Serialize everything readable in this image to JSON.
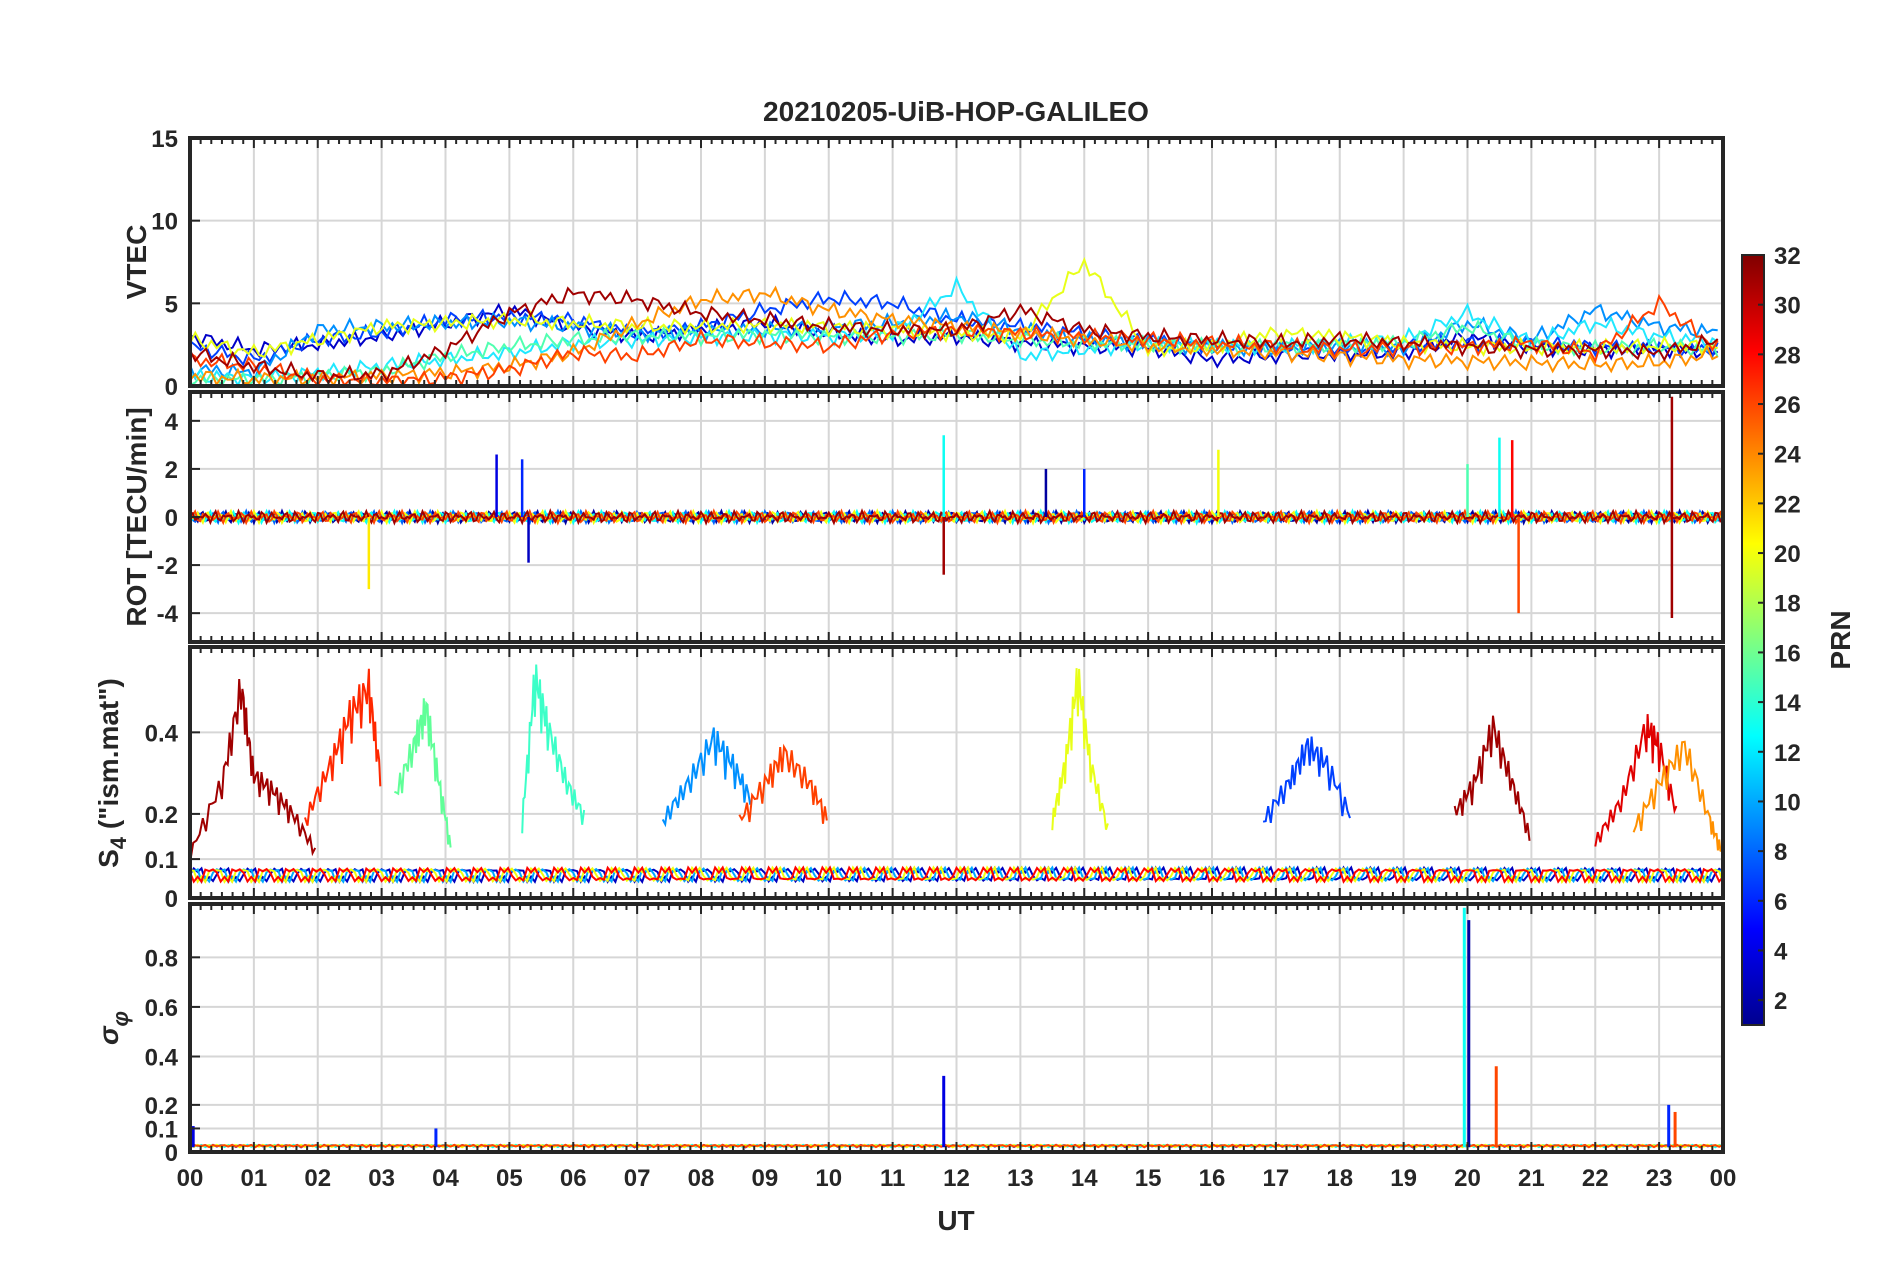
{
  "figure": {
    "title": "20210205-UiB-HOP-GALILEO",
    "xlabel": "UT",
    "x_tick_labels": [
      "00",
      "01",
      "02",
      "03",
      "04",
      "05",
      "06",
      "07",
      "08",
      "09",
      "10",
      "11",
      "12",
      "13",
      "14",
      "15",
      "16",
      "17",
      "18",
      "19",
      "20",
      "21",
      "22",
      "23",
      "00"
    ]
  },
  "colorbar": {
    "label": "PRN",
    "colormap": "jet",
    "range": [
      1,
      32
    ],
    "tick_labels": [
      "2",
      "4",
      "6",
      "8",
      "10",
      "12",
      "14",
      "16",
      "18",
      "20",
      "22",
      "24",
      "26",
      "28",
      "30",
      "32"
    ]
  },
  "chart_data": [
    {
      "type": "line",
      "panel": "vtec",
      "ylabel": "VTEC",
      "ylim": [
        0,
        15
      ],
      "yticks": [
        "0",
        "5",
        "10",
        "15"
      ],
      "xlim": [
        0,
        24
      ],
      "grid": true,
      "series": [
        {
          "prn": 2,
          "color": "#0000c8",
          "x": [
            0,
            1,
            2,
            3,
            4,
            5,
            6,
            7,
            8,
            9,
            10,
            11,
            12,
            13,
            14,
            15,
            16,
            17,
            18,
            19,
            20,
            21,
            22,
            23,
            24
          ],
          "y": [
            3.0,
            2.2,
            2.5,
            3.0,
            3.8,
            4.6,
            3.6,
            3.0,
            3.4,
            3.8,
            3.2,
            2.8,
            3.0,
            2.6,
            2.4,
            2.3,
            1.6,
            1.8,
            1.9,
            2.0,
            3.0,
            2.4,
            2.2,
            2.3,
            2.0
          ]
        },
        {
          "prn": 5,
          "color": "#0040ff",
          "x": [
            0,
            1,
            2,
            3,
            4,
            5,
            6,
            7,
            8,
            9,
            10,
            11,
            12,
            13,
            14,
            15,
            16,
            17,
            18,
            19,
            20,
            21,
            22,
            23,
            24
          ],
          "y": [
            2.4,
            1.6,
            2.8,
            3.2,
            4.0,
            4.2,
            4.0,
            3.2,
            3.6,
            4.6,
            5.3,
            5.0,
            4.0,
            3.6,
            3.2,
            2.8,
            2.5,
            2.4,
            2.2,
            2.4,
            2.6,
            2.6,
            2.4,
            2.3,
            2.2
          ]
        },
        {
          "prn": 8,
          "color": "#0090ff",
          "x": [
            0,
            1,
            2,
            3,
            4,
            5,
            6,
            7,
            8,
            9,
            10,
            11,
            12,
            13,
            14,
            15,
            16,
            17,
            18,
            19,
            20,
            21,
            22,
            23,
            24
          ],
          "y": [
            1.0,
            0.8,
            3.4,
            3.6,
            3.8,
            3.9,
            3.6,
            3.2,
            3.3,
            3.4,
            3.6,
            3.8,
            4.2,
            3.4,
            2.8,
            2.6,
            2.4,
            2.3,
            2.4,
            2.2,
            3.8,
            2.8,
            4.6,
            3.6,
            3.2
          ]
        },
        {
          "prn": 12,
          "color": "#20e8ff",
          "x": [
            0,
            1,
            2,
            3,
            4,
            5,
            6,
            7,
            8,
            9,
            10,
            11,
            12,
            13,
            14,
            15,
            16,
            17,
            18,
            19,
            20,
            21,
            22,
            23,
            24
          ],
          "y": [
            0.6,
            0.5,
            0.8,
            1.2,
            1.6,
            2.0,
            2.6,
            2.8,
            3.0,
            3.1,
            3.0,
            3.2,
            6.0,
            1.8,
            2.2,
            2.6,
            2.5,
            2.4,
            2.6,
            2.8,
            4.4,
            2.6,
            3.8,
            3.0,
            2.6
          ]
        },
        {
          "prn": 15,
          "color": "#50ffb0",
          "x": [
            0,
            1,
            2,
            3,
            4,
            5,
            6,
            7,
            8,
            9,
            10,
            11,
            12,
            13,
            14,
            15,
            16,
            17,
            18,
            19,
            20,
            21,
            22,
            23,
            24
          ],
          "y": [
            0.4,
            0.4,
            0.6,
            0.9,
            1.8,
            2.4,
            2.8,
            3.0,
            3.0,
            3.1,
            3.0,
            3.0,
            3.1,
            2.8,
            2.6,
            2.5,
            2.4,
            2.4,
            2.5,
            2.6,
            3.6,
            2.4,
            2.2,
            2.4,
            2.2
          ]
        },
        {
          "prn": 20,
          "color": "#e8ff18",
          "x": [
            0,
            1,
            2,
            3,
            4,
            5,
            6,
            7,
            8,
            9,
            10,
            11,
            12,
            13,
            14,
            15,
            16,
            17,
            18,
            19,
            20,
            21,
            22,
            23,
            24
          ],
          "y": [
            2.8,
            2.0,
            2.8,
            3.6,
            3.8,
            4.0,
            3.8,
            3.6,
            3.6,
            3.7,
            3.6,
            3.4,
            3.2,
            3.0,
            7.5,
            2.2,
            2.4,
            3.2,
            3.0,
            2.6,
            2.4,
            2.3,
            2.3,
            2.4,
            2.4
          ]
        },
        {
          "prn": 24,
          "color": "#ff9000",
          "x": [
            0,
            1,
            2,
            3,
            4,
            5,
            6,
            7,
            8,
            9,
            10,
            11,
            12,
            13,
            14,
            15,
            16,
            17,
            18,
            19,
            20,
            21,
            22,
            23,
            24
          ],
          "y": [
            0.6,
            0.4,
            0.5,
            0.6,
            0.8,
            1.2,
            2.0,
            3.8,
            5.2,
            5.6,
            4.6,
            4.0,
            3.6,
            3.2,
            2.8,
            2.4,
            2.2,
            2.0,
            1.8,
            1.6,
            1.5,
            1.4,
            1.3,
            1.4,
            2.0
          ]
        },
        {
          "prn": 26,
          "color": "#ff4000",
          "x": [
            0,
            1,
            2,
            3,
            4,
            5,
            6,
            7,
            8,
            9,
            10,
            11,
            12,
            13,
            14,
            15,
            16,
            17,
            18,
            19,
            20,
            21,
            22,
            23,
            24
          ],
          "y": [
            1.6,
            1.2,
            0.4,
            0.3,
            0.5,
            1.0,
            2.0,
            1.8,
            2.8,
            2.6,
            2.4,
            3.2,
            3.4,
            3.2,
            3.0,
            2.8,
            2.6,
            2.4,
            2.2,
            2.3,
            2.4,
            2.6,
            2.0,
            5.0,
            2.0
          ]
        },
        {
          "prn": 31,
          "color": "#a00000",
          "x": [
            0,
            1,
            2,
            3,
            4,
            5,
            6,
            7,
            8,
            9,
            10,
            11,
            12,
            13,
            14,
            15,
            16,
            17,
            18,
            19,
            20,
            21,
            22,
            23,
            24
          ],
          "y": [
            2.0,
            1.2,
            0.6,
            0.7,
            2.2,
            4.4,
            5.6,
            5.2,
            4.4,
            4.0,
            3.6,
            3.4,
            3.4,
            4.6,
            3.4,
            3.0,
            2.8,
            2.6,
            2.8,
            2.6,
            2.4,
            2.2,
            2.2,
            2.0,
            2.8
          ]
        }
      ]
    },
    {
      "type": "line",
      "panel": "rot",
      "ylabel": "ROT [TECU/min]",
      "ylim": [
        -5.2,
        5.2
      ],
      "yticks": [
        "-4",
        "-2",
        "0",
        "2",
        "4"
      ],
      "xlim": [
        0,
        24
      ],
      "grid": true,
      "spikes": [
        {
          "x": 2.8,
          "y": -3.0,
          "prn": 21
        },
        {
          "x": 4.8,
          "y": 2.6,
          "prn": 4
        },
        {
          "x": 5.2,
          "y": 2.4,
          "prn": 6
        },
        {
          "x": 5.3,
          "y": -1.9,
          "prn": 3
        },
        {
          "x": 11.8,
          "y": 3.4,
          "prn": 13
        },
        {
          "x": 11.8,
          "y": -2.4,
          "prn": 31
        },
        {
          "x": 13.4,
          "y": 2.0,
          "prn": 2
        },
        {
          "x": 14.0,
          "y": 2.0,
          "prn": 6
        },
        {
          "x": 16.1,
          "y": 2.8,
          "prn": 20
        },
        {
          "x": 20.0,
          "y": 2.2,
          "prn": 15
        },
        {
          "x": 20.5,
          "y": 3.3,
          "prn": 13
        },
        {
          "x": 20.7,
          "y": 3.2,
          "prn": 28
        },
        {
          "x": 20.8,
          "y": -4.0,
          "prn": 26
        },
        {
          "x": 23.2,
          "y": 5.0,
          "prn": 31
        },
        {
          "x": 23.2,
          "y": -4.2,
          "prn": 31
        }
      ]
    },
    {
      "type": "line",
      "panel": "s4",
      "ylabel": "S_4 (\"ism.mat\")",
      "yscale": "nonlinear",
      "ylim": [
        0,
        0.6
      ],
      "yticks": [
        "0",
        "0.1",
        "0.2",
        "0.4"
      ],
      "xlim": [
        0,
        24
      ],
      "grid": true,
      "series": [
        {
          "prn": 31,
          "color": "#a00000",
          "x": [
            0,
            0.5,
            0.8,
            1.0,
            1.3,
            1.6,
            2.0
          ],
          "y": [
            0.12,
            0.3,
            0.55,
            0.32,
            0.28,
            0.22,
            0.12
          ]
        },
        {
          "prn": 27,
          "color": "#ff2800",
          "x": [
            1.8,
            2.2,
            2.5,
            2.8,
            3.0
          ],
          "y": [
            0.2,
            0.35,
            0.48,
            0.55,
            0.3
          ]
        },
        {
          "prn": 17,
          "color": "#60ff98",
          "x": [
            3.2,
            3.5,
            3.7,
            3.9,
            4.1
          ],
          "y": [
            0.26,
            0.4,
            0.5,
            0.3,
            0.12
          ]
        },
        {
          "prn": 14,
          "color": "#3cffc8",
          "x": [
            5.2,
            5.4,
            5.6,
            5.9,
            6.2
          ],
          "y": [
            0.2,
            0.58,
            0.45,
            0.3,
            0.2
          ]
        },
        {
          "prn": 8,
          "color": "#0090ff",
          "x": [
            7.4,
            7.8,
            8.2,
            8.5,
            8.8
          ],
          "y": [
            0.2,
            0.3,
            0.42,
            0.35,
            0.25
          ]
        },
        {
          "prn": 26,
          "color": "#ff4000",
          "x": [
            8.6,
            9.0,
            9.3,
            9.7,
            10.0
          ],
          "y": [
            0.2,
            0.3,
            0.38,
            0.3,
            0.2
          ]
        },
        {
          "prn": 20,
          "color": "#e8ff18",
          "x": [
            13.5,
            13.7,
            13.9,
            14.1,
            14.4
          ],
          "y": [
            0.2,
            0.35,
            0.58,
            0.35,
            0.16
          ]
        },
        {
          "prn": 5,
          "color": "#0040ff",
          "x": [
            16.8,
            17.2,
            17.5,
            17.8,
            18.2
          ],
          "y": [
            0.2,
            0.3,
            0.4,
            0.35,
            0.2
          ]
        },
        {
          "prn": 31,
          "color": "#a00000",
          "x": [
            19.8,
            20.1,
            20.4,
            20.7,
            21.0
          ],
          "y": [
            0.22,
            0.3,
            0.45,
            0.3,
            0.15
          ]
        },
        {
          "prn": 29,
          "color": "#e00000",
          "x": [
            22.0,
            22.4,
            22.8,
            23.0,
            23.3
          ],
          "y": [
            0.15,
            0.25,
            0.45,
            0.4,
            0.2
          ]
        },
        {
          "prn": 24,
          "color": "#ff9000",
          "x": [
            22.6,
            23.0,
            23.4,
            23.8,
            24.0
          ],
          "y": [
            0.18,
            0.3,
            0.4,
            0.2,
            0.12
          ]
        }
      ]
    },
    {
      "type": "line",
      "panel": "sigma_phi",
      "ylabel": "σ_φ",
      "yscale": "nonlinear",
      "ylim": [
        0,
        1
      ],
      "yticks": [
        "0",
        "0.1",
        "0.2",
        "0.4",
        "0.6",
        "0.8"
      ],
      "xlim": [
        0,
        24
      ],
      "grid": true,
      "spikes": [
        {
          "x": 0.05,
          "y": 0.11,
          "prn": 4
        },
        {
          "x": 3.85,
          "y": 0.1,
          "prn": 6
        },
        {
          "x": 11.8,
          "y": 0.32,
          "prn": 4
        },
        {
          "x": 19.95,
          "y": 1.0,
          "prn": 13
        },
        {
          "x": 20.02,
          "y": 0.95,
          "prn": 2
        },
        {
          "x": 20.45,
          "y": 0.36,
          "prn": 26
        },
        {
          "x": 23.15,
          "y": 0.2,
          "prn": 6
        },
        {
          "x": 23.25,
          "y": 0.17,
          "prn": 26
        }
      ]
    }
  ]
}
